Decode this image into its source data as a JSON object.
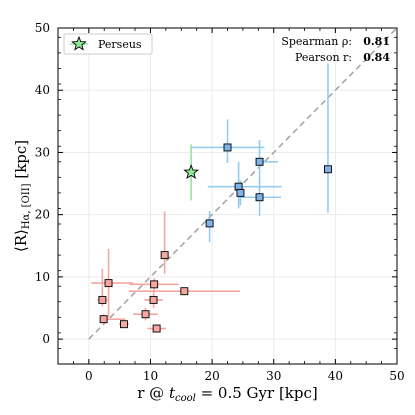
{
  "chart_data": {
    "type": "scatter",
    "xlabel": "r @ t_cool = 0.5 Gyr [kpc]",
    "ylabel": "⟨R⟩Hα, [OII] [kpc]",
    "xlim": [
      -5,
      50
    ],
    "ylim": [
      -4,
      50
    ],
    "x_ticks": [
      "0",
      "10",
      "20",
      "30",
      "40",
      "50"
    ],
    "y_ticks": [
      "0",
      "10",
      "20",
      "30",
      "40",
      "50"
    ],
    "grid": true,
    "one_to_one_line": true,
    "legend": {
      "placement": "top-left",
      "entries": [
        "Perseus"
      ]
    },
    "stats": [
      {
        "label": "Spearman ρ:",
        "value": "0.81"
      },
      {
        "label": "Pearson r:",
        "value": "0.84"
      }
    ],
    "colors": {
      "red_marker": "#f4a6a0",
      "red_err": "#f4a6a0",
      "blue_marker": "#7fb2e6",
      "blue_err": "#94cdf0",
      "star_fill": "#8ee89b",
      "star_err": "#8ee89b",
      "one_to_one": "#a6a6a6",
      "grid": "#ececec"
    },
    "series": [
      {
        "group": "red",
        "points": [
          {
            "x": 2.2,
            "y": 6.3,
            "xerr": [
              0.8,
              0.8
            ],
            "yerr": [
              1.0,
              5.0
            ]
          },
          {
            "x": 3.2,
            "y": 9.0,
            "xerr": [
              2.8,
              4.0
            ],
            "yerr": [
              5.5,
              5.5
            ]
          },
          {
            "x": 2.4,
            "y": 3.2,
            "xerr": [
              0.5,
              3.5
            ],
            "yerr": [
              0.8,
              0.8
            ]
          },
          {
            "x": 5.7,
            "y": 2.4,
            "xerr": [
              0.8,
              0.8
            ],
            "yerr": [
              0.6,
              0.6
            ]
          },
          {
            "x": 9.2,
            "y": 4.0,
            "xerr": [
              2.0,
              2.0
            ],
            "yerr": [
              1.0,
              1.0
            ]
          },
          {
            "x": 10.5,
            "y": 6.3,
            "xerr": [
              1.5,
              1.5
            ],
            "yerr": [
              1.3,
              1.3
            ]
          },
          {
            "x": 10.6,
            "y": 8.8,
            "xerr": [
              4.0,
              4.0
            ],
            "yerr": [
              1.0,
              1.0
            ]
          },
          {
            "x": 11.0,
            "y": 1.7,
            "xerr": [
              1.5,
              1.5
            ],
            "yerr": [
              0.6,
              0.6
            ]
          },
          {
            "x": 12.3,
            "y": 13.5,
            "xerr": [
              0.6,
              0.6
            ],
            "yerr": [
              3.0,
              7.0
            ]
          },
          {
            "x": 15.5,
            "y": 7.7,
            "xerr": [
              9.0,
              9.0
            ],
            "yerr": [
              0.6,
              0.6
            ]
          }
        ]
      },
      {
        "group": "blue",
        "points": [
          {
            "x": 19.6,
            "y": 18.6,
            "xerr": [
              0.3,
              0.3
            ],
            "yerr": [
              3.0,
              2.0
            ]
          },
          {
            "x": 22.5,
            "y": 30.8,
            "xerr": [
              6.0,
              6.0
            ],
            "yerr": [
              2.5,
              4.5
            ]
          },
          {
            "x": 24.3,
            "y": 24.5,
            "xerr": [
              5.0,
              7.0
            ],
            "yerr": [
              3.5,
              4.0
            ]
          },
          {
            "x": 24.6,
            "y": 23.5,
            "xerr": [
              0.4,
              0.4
            ],
            "yerr": [
              2.0,
              2.0
            ]
          },
          {
            "x": 27.7,
            "y": 22.8,
            "xerr": [
              3.5,
              3.5
            ],
            "yerr": [
              3.0,
              3.0
            ]
          },
          {
            "x": 27.7,
            "y": 28.5,
            "xerr": [
              0.5,
              3.0
            ],
            "yerr": [
              3.5,
              3.5
            ]
          },
          {
            "x": 38.8,
            "y": 27.3,
            "xerr": [
              0.5,
              0.5
            ],
            "yerr": [
              7.0,
              17.0
            ]
          }
        ]
      },
      {
        "group": "star",
        "name": "Perseus",
        "points": [
          {
            "x": 16.6,
            "y": 26.8,
            "xerr": [
              0,
              0
            ],
            "yerr": [
              4.5,
              4.5
            ]
          }
        ]
      }
    ]
  }
}
